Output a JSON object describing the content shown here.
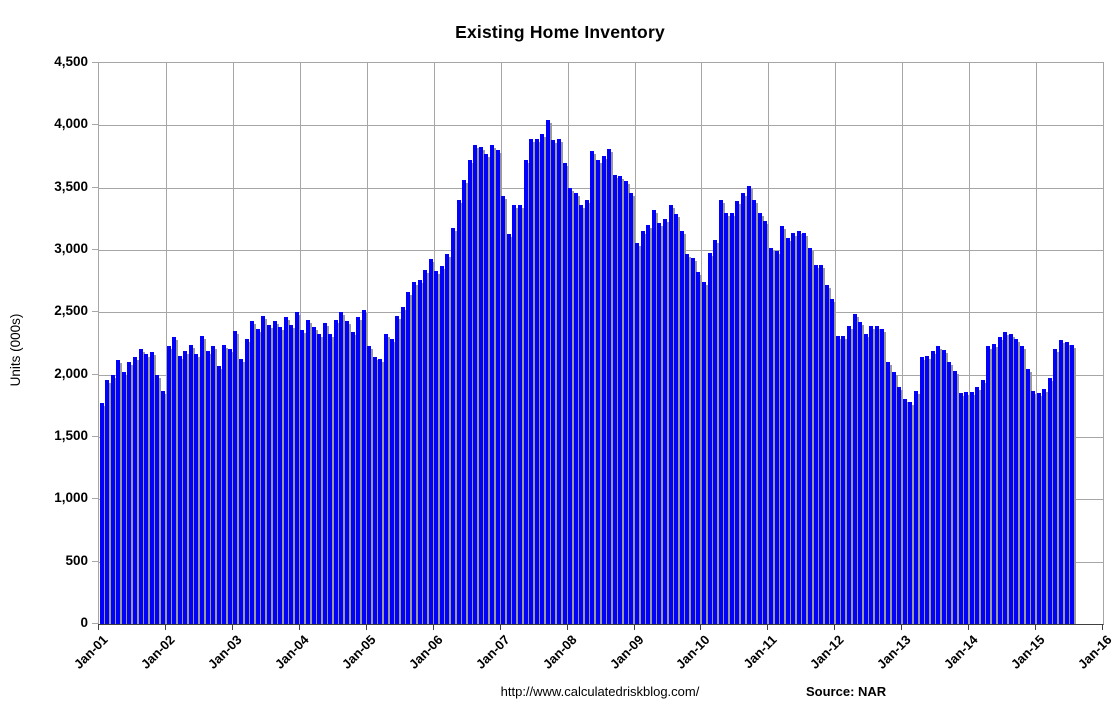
{
  "title": "Existing Home Inventory",
  "y_axis": {
    "title": "Units (000s)",
    "tick_labels": [
      "0",
      "500",
      "1,000",
      "1,500",
      "2,000",
      "2,500",
      "3,000",
      "3,500",
      "4,000",
      "4,500"
    ],
    "min": 0,
    "max": 4500,
    "step": 500
  },
  "x_axis": {
    "labels": [
      "Jan-01",
      "Jan-02",
      "Jan-03",
      "Jan-04",
      "Jan-05",
      "Jan-06",
      "Jan-07",
      "Jan-08",
      "Jan-09",
      "Jan-10",
      "Jan-11",
      "Jan-12",
      "Jan-13",
      "Jan-14",
      "Jan-15",
      "Jan-16"
    ]
  },
  "footer": {
    "url": "http://www.calculatedriskblog.com/",
    "source": "Source: NAR"
  },
  "colors": {
    "bar": "#0202fa",
    "bar_shadow": "#9a9a9a",
    "gridline": "#a6a6a6",
    "axis": "#404040",
    "text": "#000000",
    "background": "#ffffff"
  },
  "chart_data": {
    "type": "bar",
    "title": "Existing Home Inventory",
    "xlabel": "",
    "ylabel": "Units (000s)",
    "ylim": [
      0,
      4500
    ],
    "grid": true,
    "legend": "none",
    "unit": "thousands of units",
    "frequency": "monthly",
    "start_month": "2001-01",
    "end_month": "2015-07",
    "values_by_year": {
      "2001": [
        1775,
        1955,
        2000,
        2115,
        2020,
        2105,
        2145,
        2210,
        2165,
        2180,
        2000,
        1870
      ],
      "2002": [
        2230,
        2300,
        2150,
        2190,
        2240,
        2165,
        2310,
        2190,
        2230,
        2070,
        2240,
        2205
      ],
      "2003": [
        2350,
        2125,
        2285,
        2430,
        2370,
        2470,
        2400,
        2430,
        2380,
        2465,
        2400,
        2500
      ],
      "2004": [
        2360,
        2440,
        2385,
        2325,
        2415,
        2330,
        2440,
        2500,
        2430,
        2340,
        2460,
        2520
      ],
      "2005": [
        2230,
        2140,
        2130,
        2325,
        2285,
        2470,
        2540,
        2665,
        2745,
        2760,
        2840,
        2925
      ],
      "2006": [
        2835,
        2870,
        2965,
        3180,
        3405,
        3565,
        3720,
        3845,
        3830,
        3770,
        3845,
        3800
      ],
      "2007": [
        3430,
        3130,
        3360,
        3360,
        3725,
        3890,
        3890,
        3930,
        4040,
        3880,
        3890,
        3700
      ],
      "2008": [
        3500,
        3460,
        3360,
        3400,
        3795,
        3720,
        3755,
        3810,
        3600,
        3595,
        3555,
        3460
      ],
      "2009": [
        3060,
        3150,
        3200,
        3320,
        3220,
        3250,
        3365,
        3290,
        3150,
        2965,
        2940,
        2820
      ],
      "2010": [
        2740,
        2980,
        3080,
        3400,
        3300,
        3300,
        3395,
        3460,
        3515,
        3400,
        3300,
        3230
      ],
      "2011": [
        3020,
        2995,
        3190,
        3095,
        3140,
        3155,
        3140,
        3015,
        2880,
        2880,
        2720,
        2605
      ],
      "2012": [
        2310,
        2310,
        2390,
        2490,
        2425,
        2325,
        2390,
        2390,
        2370,
        2100,
        2025,
        1905
      ],
      "2013": [
        1805,
        1780,
        1870,
        2140,
        2150,
        2190,
        2230,
        2195,
        2105,
        2030,
        1850,
        1865
      ],
      "2014": [
        1865,
        1900,
        1955,
        2230,
        2250,
        2300,
        2345,
        2325,
        2290,
        2230,
        2045,
        1870
      ],
      "2015": [
        1850,
        1885,
        1975,
        2210,
        2280,
        2260,
        2240
      ]
    }
  }
}
